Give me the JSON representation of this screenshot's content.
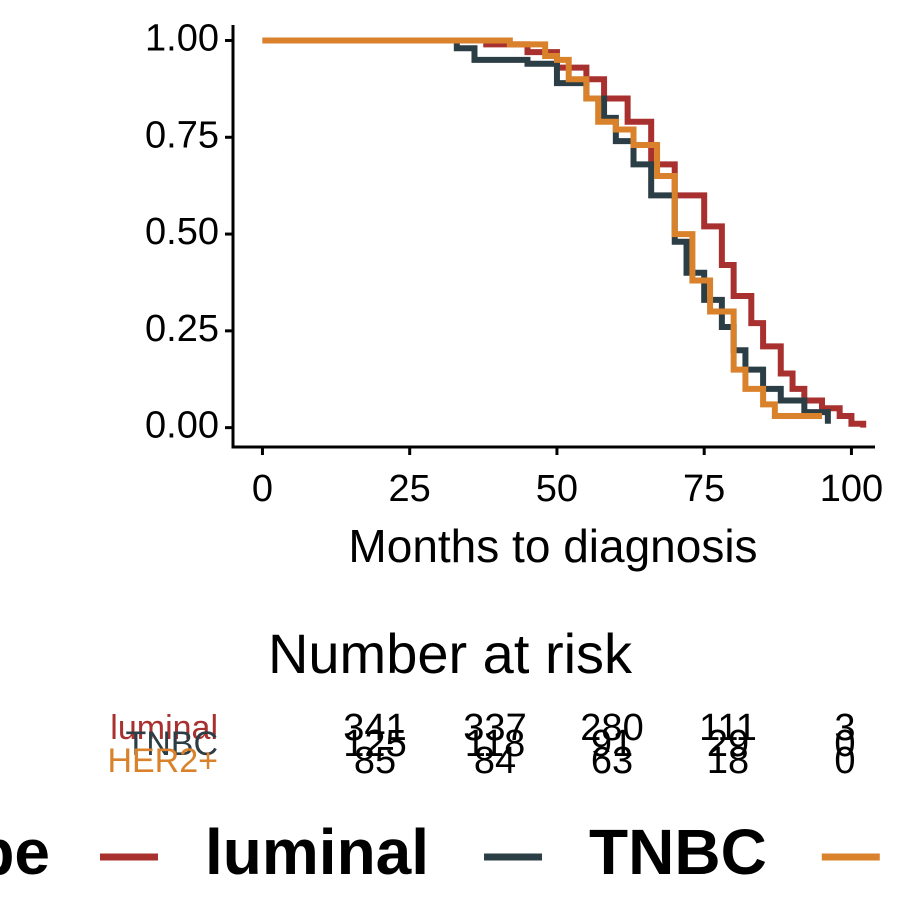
{
  "chart_data": {
    "type": "step",
    "xlabel": "Months to diagnosis",
    "xlim": [
      -5,
      104
    ],
    "xticks": [
      0,
      25,
      50,
      75,
      100
    ],
    "ylim": [
      -0.05,
      1.04
    ],
    "yticks": [
      {
        "value": 0,
        "label": "0.00"
      },
      {
        "value": 0.25,
        "label": "0.25"
      },
      {
        "value": 0.5,
        "label": "0.50"
      },
      {
        "value": 0.75,
        "label": "0.75"
      },
      {
        "value": 1,
        "label": "1.00"
      }
    ],
    "legend_title": "Subtype",
    "series": [
      {
        "name": "luminal",
        "color": "#a8302f",
        "x": [
          0,
          38,
          45,
          50,
          55,
          58,
          62,
          66,
          70,
          75,
          78,
          80,
          83,
          85,
          88,
          90,
          92,
          95,
          98,
          100,
          102
        ],
        "values": [
          1,
          0.99,
          0.97,
          0.93,
          0.9,
          0.85,
          0.79,
          0.68,
          0.6,
          0.52,
          0.42,
          0.34,
          0.27,
          0.21,
          0.14,
          0.1,
          0.07,
          0.05,
          0.03,
          0.01,
          0
        ]
      },
      {
        "name": "TNBC",
        "color": "#2c3e45",
        "x": [
          0,
          33,
          36,
          45,
          50,
          55,
          58,
          60,
          63,
          66,
          70,
          72,
          75,
          78,
          80,
          82,
          85,
          88,
          92,
          96
        ],
        "values": [
          1,
          0.98,
          0.95,
          0.94,
          0.89,
          0.85,
          0.8,
          0.74,
          0.68,
          0.6,
          0.48,
          0.4,
          0.33,
          0.26,
          0.2,
          0.15,
          0.1,
          0.07,
          0.04,
          0.01
        ]
      },
      {
        "name": "HER2+",
        "color": "#d9822b",
        "x": [
          0,
          42,
          48,
          50,
          52,
          55,
          57,
          60,
          63,
          67,
          70,
          73,
          76,
          80,
          82,
          85,
          87,
          95
        ],
        "values": [
          1,
          0.99,
          0.96,
          0.95,
          0.9,
          0.85,
          0.79,
          0.77,
          0.73,
          0.65,
          0.5,
          0.38,
          0.3,
          0.15,
          0.1,
          0.06,
          0.03,
          0.03
        ]
      }
    ],
    "risk_table": {
      "title": "Number at risk",
      "rows": [
        [
          341,
          337,
          280,
          111,
          3
        ],
        [
          125,
          118,
          91,
          29,
          0
        ],
        [
          85,
          84,
          63,
          18,
          0
        ]
      ]
    }
  }
}
